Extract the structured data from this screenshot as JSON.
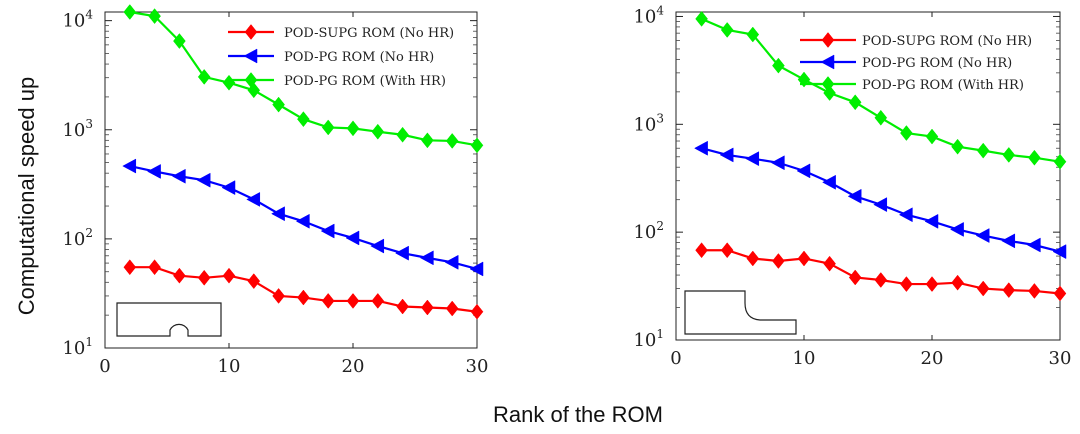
{
  "figure": {
    "ylabel": "Computational speed up",
    "xlabel": "Rank of the ROM"
  },
  "chart_data": [
    {
      "type": "line",
      "yscale": "log",
      "xlim": [
        0,
        30
      ],
      "ylim": [
        10,
        12000
      ],
      "xticks": [
        "0",
        "10",
        "20",
        "30"
      ],
      "yticks": [
        {
          "base": "10",
          "exp": "1",
          "value": 10
        },
        {
          "base": "10",
          "exp": "2",
          "value": 100
        },
        {
          "base": "10",
          "exp": "3",
          "value": 1000
        },
        {
          "base": "10",
          "exp": "4",
          "value": 10000
        }
      ],
      "legend_position": "top-right",
      "inset": "plate-with-semicircular-notch",
      "x": [
        2,
        4,
        6,
        8,
        10,
        12,
        14,
        16,
        18,
        20,
        22,
        24,
        26,
        28,
        30
      ],
      "series": [
        {
          "name": "POD-SUPG ROM (No HR)",
          "color": "#ff0000",
          "marker": "diamond",
          "values": [
            55,
            55,
            46,
            44,
            46,
            41,
            30,
            29,
            27,
            27,
            27,
            24,
            23.5,
            23,
            21.5
          ]
        },
        {
          "name": "POD-PG ROM (No HR)",
          "color": "#0000ff",
          "marker": "triangle-left",
          "values": [
            465,
            415,
            375,
            345,
            295,
            230,
            170,
            145,
            118,
            102,
            86,
            74,
            67,
            61,
            53
          ]
        },
        {
          "name": "POD-PG ROM (With HR)",
          "color": "#00ee00",
          "marker": "diamond",
          "values": [
            12000,
            11000,
            6500,
            3050,
            2700,
            2300,
            1700,
            1250,
            1050,
            1030,
            960,
            900,
            800,
            790,
            720
          ]
        }
      ]
    },
    {
      "type": "line",
      "yscale": "log",
      "xlim": [
        0,
        30
      ],
      "ylim": [
        10,
        11000
      ],
      "xticks": [
        "0",
        "10",
        "20",
        "30"
      ],
      "yticks": [
        {
          "base": "10",
          "exp": "1",
          "value": 10
        },
        {
          "base": "10",
          "exp": "2",
          "value": 100
        },
        {
          "base": "10",
          "exp": "3",
          "value": 1000
        },
        {
          "base": "10",
          "exp": "4",
          "value": 10000
        }
      ],
      "legend_position": "top-right",
      "inset": "L-shaped-step-with-fillet",
      "x": [
        2,
        4,
        6,
        8,
        10,
        12,
        14,
        16,
        18,
        20,
        22,
        24,
        26,
        28,
        30
      ],
      "series": [
        {
          "name": "POD-SUPG ROM (No HR)",
          "color": "#ff0000",
          "marker": "diamond",
          "values": [
            68,
            68,
            57,
            54,
            57,
            51,
            38,
            36,
            33,
            33,
            34,
            30,
            29,
            28.5,
            27
          ]
        },
        {
          "name": "POD-PG ROM (No HR)",
          "color": "#0000ff",
          "marker": "triangle-left",
          "values": [
            600,
            520,
            480,
            440,
            370,
            290,
            215,
            180,
            145,
            126,
            106,
            93,
            83,
            76,
            66
          ]
        },
        {
          "name": "POD-PG ROM (With HR)",
          "color": "#00ee00",
          "marker": "diamond",
          "values": [
            9500,
            7500,
            6800,
            3500,
            2600,
            1950,
            1600,
            1150,
            830,
            770,
            620,
            570,
            520,
            490,
            450
          ]
        }
      ]
    }
  ]
}
